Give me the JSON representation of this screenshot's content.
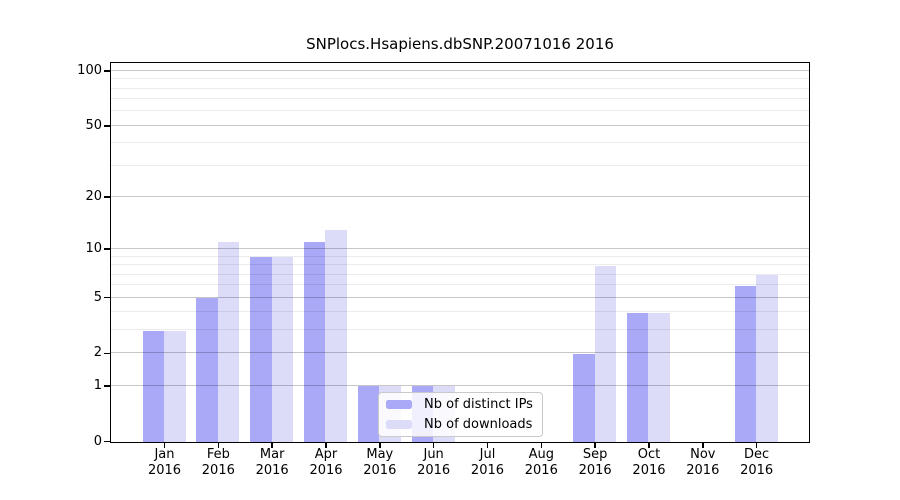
{
  "title": "SNPlocs.Hsapiens.dbSNP.20071016 2016",
  "chart_data": {
    "type": "bar",
    "title": "SNPlocs.Hsapiens.dbSNP.20071016 2016",
    "xlabel": "",
    "ylabel": "",
    "categories": [
      "Jan",
      "Feb",
      "Mar",
      "Apr",
      "May",
      "Jun",
      "Jul",
      "Aug",
      "Sep",
      "Oct",
      "Nov",
      "Dec"
    ],
    "category_year": "2016",
    "series": [
      {
        "name": "Nb of distinct IPs",
        "color": "#a9a9f7",
        "values": [
          3,
          5,
          9,
          11,
          1,
          1,
          0,
          0,
          2,
          4,
          0,
          6
        ]
      },
      {
        "name": "Nb of downloads",
        "color": "#dcdcf9",
        "values": [
          3,
          11,
          9,
          13,
          1,
          1,
          0,
          0,
          8,
          4,
          0,
          7
        ]
      }
    ],
    "y_axis": {
      "scale": "log1p",
      "tick_labels": [
        0,
        1,
        2,
        5,
        10,
        20,
        50,
        100
      ],
      "minor_gridlines": [
        3,
        4,
        6,
        7,
        8,
        9,
        30,
        40,
        60,
        70,
        80,
        90
      ],
      "range_top": 112
    },
    "grid": "on",
    "legend": {
      "position": "inside-bottom-center"
    },
    "colors": {
      "bar_ips": "#a9a9f7",
      "bar_downloads": "#dcdcf9",
      "spine": "#000000",
      "grid_major": "#c6c6c6",
      "grid_minor": "#ebebeb",
      "legend_border": "#c9c9c9",
      "background": "#ffffff"
    }
  }
}
